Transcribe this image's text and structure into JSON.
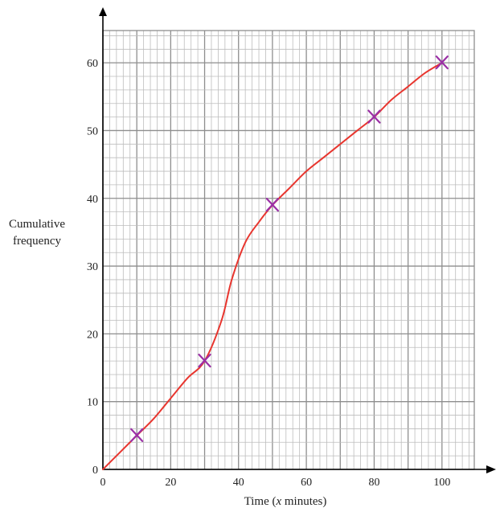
{
  "chart_data": {
    "type": "line",
    "title": "",
    "xlabel_parts": {
      "before": "Time (",
      "italic": "x",
      "after": " minutes)"
    },
    "ylabel_lines": [
      "Cumulative",
      "frequency"
    ],
    "xlim": [
      0,
      110
    ],
    "ylim": [
      0,
      65
    ],
    "xticks": [
      0,
      20,
      40,
      60,
      80,
      100
    ],
    "yticks": [
      0,
      10,
      20,
      30,
      40,
      50,
      60
    ],
    "grid": true,
    "legend": "none",
    "points": [
      {
        "x": 10,
        "y": 5
      },
      {
        "x": 30,
        "y": 16
      },
      {
        "x": 50,
        "y": 39
      },
      {
        "x": 80,
        "y": 52
      },
      {
        "x": 100,
        "y": 60
      }
    ],
    "curve": [
      [
        0,
        0
      ],
      [
        5,
        2.5
      ],
      [
        10,
        5
      ],
      [
        15,
        7.5
      ],
      [
        20,
        10.5
      ],
      [
        25,
        13.5
      ],
      [
        30,
        16
      ],
      [
        35,
        22
      ],
      [
        38,
        28
      ],
      [
        42,
        33.5
      ],
      [
        46,
        36.5
      ],
      [
        50,
        39
      ],
      [
        55,
        41.5
      ],
      [
        60,
        44
      ],
      [
        65,
        46
      ],
      [
        70,
        48
      ],
      [
        75,
        50
      ],
      [
        80,
        52
      ],
      [
        85,
        54.5
      ],
      [
        90,
        56.5
      ],
      [
        95,
        58.5
      ],
      [
        100,
        60
      ]
    ],
    "colors": {
      "curve": "#e8362f",
      "marker": "#9b2fa6",
      "grid_minor": "#bdbdbd",
      "grid_major": "#8e8e8e",
      "axis": "#000000"
    }
  }
}
